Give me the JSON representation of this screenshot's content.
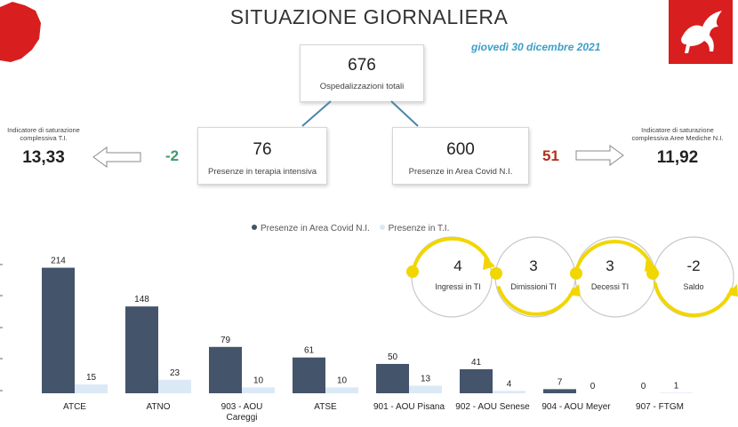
{
  "header": {
    "title": "SITUAZIONE GIORNALIERA",
    "date": "giovedì 30 dicembre 2021",
    "region_map_color": "#d81e1e",
    "logo_color": "#d81e1e"
  },
  "total": {
    "value": "676",
    "label": "Ospedalizzazioni totali"
  },
  "icu": {
    "value": "76",
    "label": "Presenze in terapia intensiva",
    "delta": "-2",
    "delta_color": "#3a9a6a"
  },
  "covid_area": {
    "value": "600",
    "label": "Presenze in Area Covid N.I.",
    "delta": "51",
    "delta_color": "#b0301e"
  },
  "saturation_icu": {
    "label_line1": "Indicatore di saturazione",
    "label_line2": "complessiva T.I.",
    "value": "13,33"
  },
  "saturation_medical": {
    "label_line1": "Indicatore di saturazione",
    "label_line2": "complessiva Aree Mediche N.I.",
    "value": "11,92"
  },
  "legend": {
    "series1": "Presenze in Area Covid N.I.",
    "series2": "Presenze in T.I."
  },
  "flow": {
    "accent": "#f2d600",
    "items": [
      {
        "value": "4",
        "label": "Ingressi in TI"
      },
      {
        "value": "3",
        "label": "Dimissioni TI"
      },
      {
        "value": "3",
        "label": "Decessi TI"
      },
      {
        "value": "-2",
        "label": "Saldo"
      }
    ]
  },
  "chart_data": {
    "type": "bar",
    "categories": [
      "ATCE",
      "ATNO",
      "903 - AOU Careggi",
      "ATSE",
      "901 - AOU Pisana",
      "902 - AOU Senese",
      "904 - AOU Meyer",
      "907 - FTGM"
    ],
    "category_lines": [
      [
        "ATCE"
      ],
      [
        "ATNO"
      ],
      [
        "903 - AOU",
        "Careggi"
      ],
      [
        "ATSE"
      ],
      [
        "901 - AOU Pisana"
      ],
      [
        "902 - AOU Senese"
      ],
      [
        "904 - AOU Meyer"
      ],
      [
        "907 - FTGM"
      ]
    ],
    "series": [
      {
        "name": "Presenze in Area Covid N.I.",
        "values": [
          214,
          148,
          79,
          61,
          50,
          41,
          7,
          0
        ],
        "color": "#44546a"
      },
      {
        "name": "Presenze in T.I.",
        "values": [
          15,
          23,
          10,
          10,
          13,
          4,
          0,
          1
        ],
        "color": "#dbe9f6"
      }
    ],
    "ylim": [
      0,
      230
    ]
  }
}
